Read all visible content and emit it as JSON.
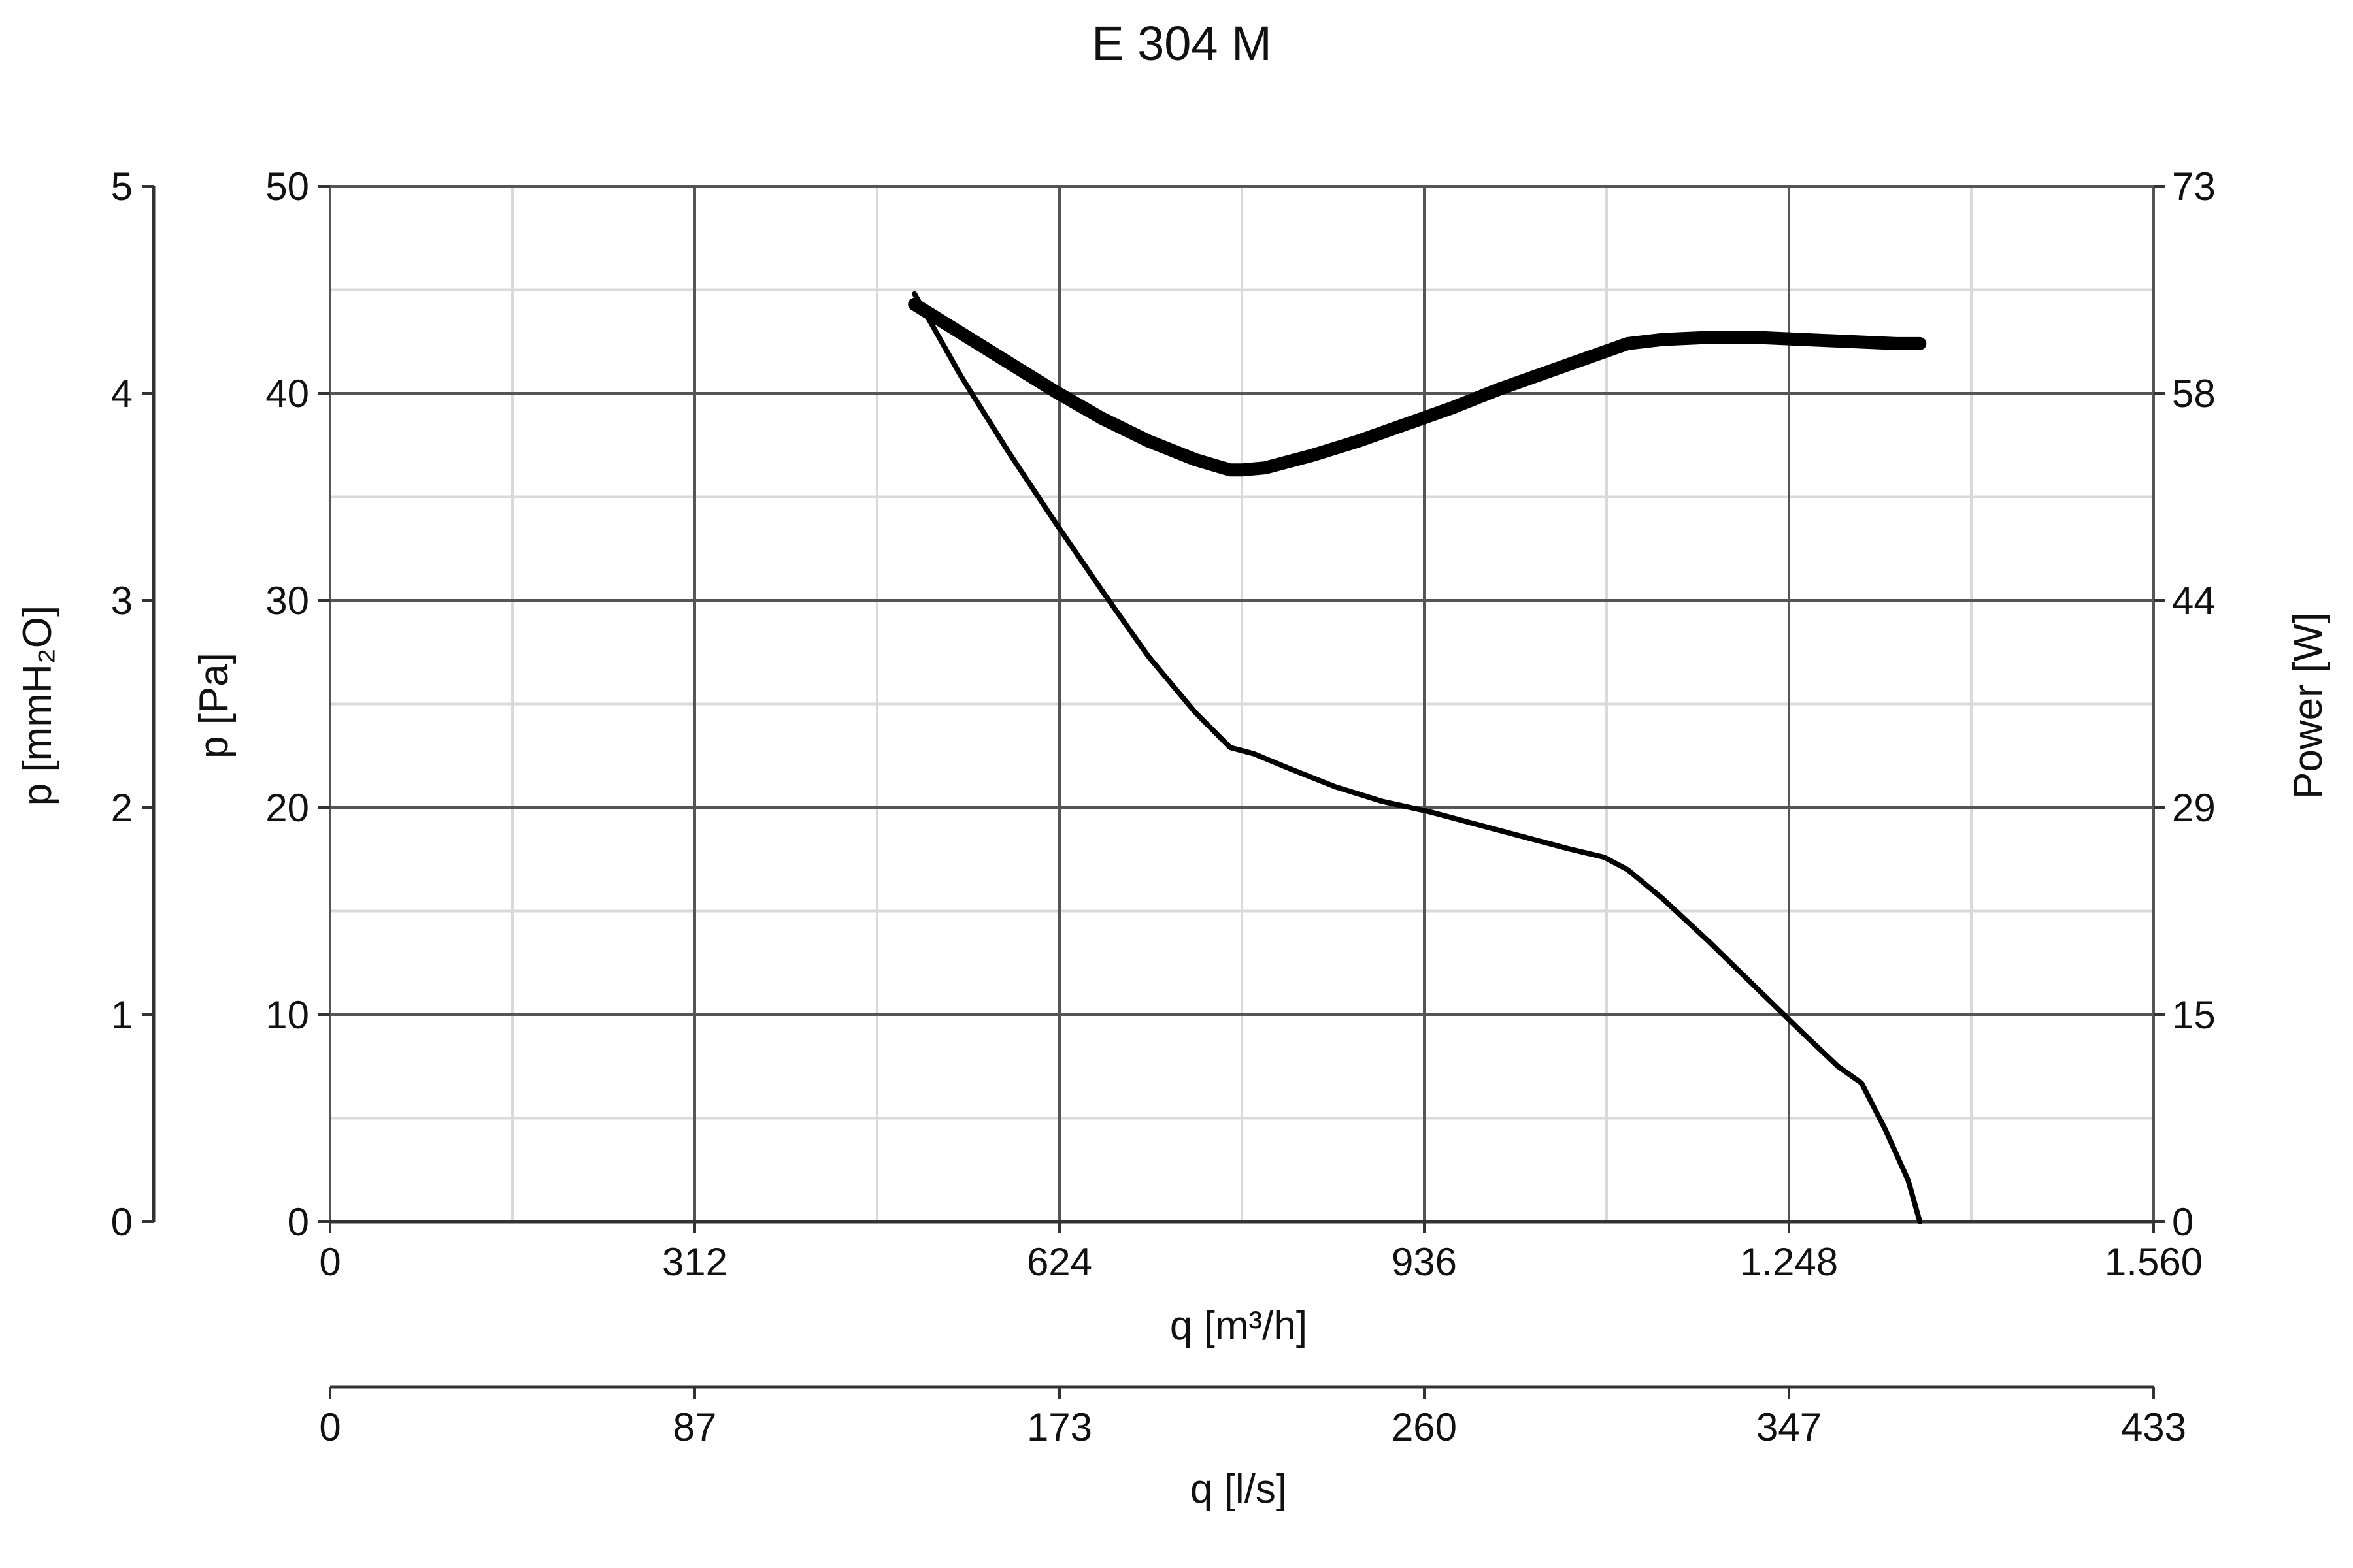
{
  "chart_data": {
    "type": "line",
    "title": "E 304 M",
    "xlabel": "q [m³/h]",
    "xlabel2": "q [l/s]",
    "ylabel": "p [Pa]",
    "ylabel_left_outer": "p [mmH₂O]",
    "ylabel_right": "Power [W]",
    "xlim": [
      0,
      1560
    ],
    "ylim": [
      0,
      50
    ],
    "grid": true,
    "x_ticks": [
      {
        "value": 0,
        "label": "0"
      },
      {
        "value": 312,
        "label": "312"
      },
      {
        "value": 624,
        "label": "624"
      },
      {
        "value": 936,
        "label": "936"
      },
      {
        "value": 1248,
        "label": "1.248"
      },
      {
        "value": 1560,
        "label": "1.560"
      }
    ],
    "x2_ticks": [
      {
        "value": 0,
        "label": "0"
      },
      {
        "value": 312,
        "label": "87"
      },
      {
        "value": 624,
        "label": "173"
      },
      {
        "value": 936,
        "label": "260"
      },
      {
        "value": 1248,
        "label": "347"
      },
      {
        "value": 1560,
        "label": "433"
      }
    ],
    "y_ticks": [
      {
        "value": 0,
        "label": "0"
      },
      {
        "value": 10,
        "label": "10"
      },
      {
        "value": 20,
        "label": "20"
      },
      {
        "value": 30,
        "label": "30"
      },
      {
        "value": 40,
        "label": "40"
      },
      {
        "value": 50,
        "label": "50"
      }
    ],
    "y_outer_ticks": [
      {
        "value": 0,
        "label": "0"
      },
      {
        "value": 10,
        "label": "1"
      },
      {
        "value": 20,
        "label": "2"
      },
      {
        "value": 30,
        "label": "3"
      },
      {
        "value": 40,
        "label": "4"
      },
      {
        "value": 50,
        "label": "5"
      }
    ],
    "y_right_ticks": [
      {
        "value": 0,
        "label": "0"
      },
      {
        "value": 10,
        "label": "15"
      },
      {
        "value": 20,
        "label": "29"
      },
      {
        "value": 30,
        "label": "44"
      },
      {
        "value": 40,
        "label": "58"
      },
      {
        "value": 50,
        "label": "73"
      }
    ],
    "series": [
      {
        "axis": "left",
        "style": "thin",
        "x": [
          500,
          540,
          580,
          620,
          660,
          700,
          740,
          770,
          790,
          820,
          860,
          900,
          940,
          980,
          1020,
          1060,
          1090,
          1110,
          1140,
          1180,
          1220,
          1260,
          1290,
          1310,
          1330,
          1350,
          1360
        ],
        "y": [
          44.8,
          40.8,
          37.2,
          33.8,
          30.5,
          27.3,
          24.6,
          22.9,
          22.6,
          21.9,
          21.0,
          20.3,
          19.8,
          19.2,
          18.6,
          18.0,
          17.6,
          17.0,
          15.6,
          13.5,
          11.3,
          9.1,
          7.5,
          6.7,
          4.5,
          2.0,
          0.0
        ]
      },
      {
        "axis": "left",
        "style": "thick",
        "x": [
          500,
          540,
          580,
          620,
          660,
          700,
          740,
          770,
          780,
          800,
          840,
          880,
          920,
          960,
          1000,
          1040,
          1080,
          1110,
          1140,
          1180,
          1220,
          1260,
          1300,
          1340,
          1360
        ],
        "y": [
          44.3,
          42.9,
          41.5,
          40.1,
          38.8,
          37.7,
          36.8,
          36.3,
          36.3,
          36.4,
          37.0,
          37.7,
          38.5,
          39.3,
          40.2,
          41.0,
          41.8,
          42.4,
          42.6,
          42.7,
          42.7,
          42.6,
          42.5,
          42.4,
          42.4
        ]
      }
    ]
  }
}
